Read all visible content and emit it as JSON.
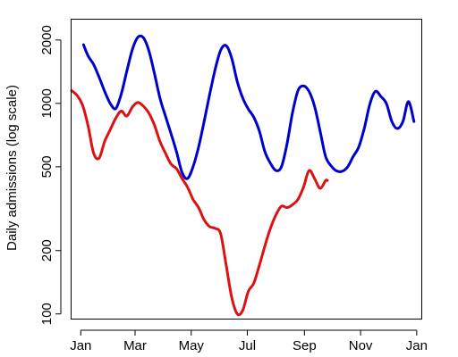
{
  "chart_data": {
    "type": "line",
    "title": "",
    "xlabel": "",
    "ylabel": "Daily admissions (log scale)",
    "y_scale": "log",
    "ylim": [
      95,
      2500
    ],
    "xlim": [
      -10,
      370
    ],
    "grid": false,
    "legend": "none",
    "x_ticks": [
      {
        "day": 0,
        "label": "Jan"
      },
      {
        "day": 59,
        "label": "Mar"
      },
      {
        "day": 120,
        "label": "May"
      },
      {
        "day": 181,
        "label": "Jul"
      },
      {
        "day": 243,
        "label": "Sep"
      },
      {
        "day": 304,
        "label": "Nov"
      },
      {
        "day": 365,
        "label": "Jan"
      }
    ],
    "y_ticks": [
      {
        "value": 100,
        "label": "100"
      },
      {
        "value": 200,
        "label": "200"
      },
      {
        "value": 500,
        "label": "500"
      },
      {
        "value": 1000,
        "label": "1000"
      },
      {
        "value": 2000,
        "label": "2000"
      }
    ],
    "series": [
      {
        "color": "#0000cc",
        "x": [
          3,
          8,
          14,
          20,
          26,
          32,
          38,
          44,
          50,
          56,
          62,
          68,
          74,
          80,
          86,
          92,
          98,
          104,
          110,
          116,
          122,
          128,
          134,
          140,
          146,
          152,
          158,
          164,
          170,
          176,
          182,
          188,
          194,
          200,
          206,
          212,
          218,
          224,
          230,
          236,
          242,
          248,
          254,
          260,
          266,
          272,
          278,
          284,
          290,
          296,
          302,
          308,
          314,
          320,
          326,
          332,
          338,
          344,
          350,
          356,
          362
        ],
        "y": [
          1900,
          1680,
          1530,
          1330,
          1140,
          1000,
          945,
          1110,
          1420,
          1800,
          2060,
          2050,
          1780,
          1390,
          1060,
          870,
          720,
          590,
          470,
          440,
          500,
          620,
          820,
          1100,
          1450,
          1790,
          1880,
          1640,
          1270,
          1060,
          940,
          860,
          740,
          590,
          520,
          480,
          500,
          640,
          900,
          1150,
          1210,
          1140,
          970,
          740,
          560,
          505,
          478,
          476,
          500,
          560,
          620,
          760,
          990,
          1140,
          1080,
          1000,
          820,
          760,
          820,
          1020,
          820
        ]
      },
      {
        "color": "#dd1111",
        "x": [
          -10,
          -4,
          2,
          8,
          14,
          20,
          26,
          32,
          38,
          44,
          50,
          56,
          62,
          68,
          74,
          80,
          86,
          92,
          98,
          104,
          110,
          116,
          122,
          128,
          134,
          140,
          146,
          152,
          158,
          164,
          170,
          176,
          182,
          188,
          194,
          200,
          206,
          212,
          218,
          224,
          230,
          236,
          242,
          248,
          254,
          260,
          266,
          268
        ],
        "y": [
          1150,
          1090,
          980,
          780,
          580,
          550,
          660,
          750,
          850,
          920,
          870,
          960,
          1010,
          970,
          900,
          790,
          660,
          580,
          515,
          490,
          440,
          400,
          350,
          320,
          280,
          260,
          255,
          240,
          170,
          120,
          100,
          104,
          128,
          140,
          170,
          210,
          255,
          295,
          325,
          320,
          330,
          350,
          400,
          480,
          440,
          395,
          430,
          430
        ]
      }
    ]
  }
}
